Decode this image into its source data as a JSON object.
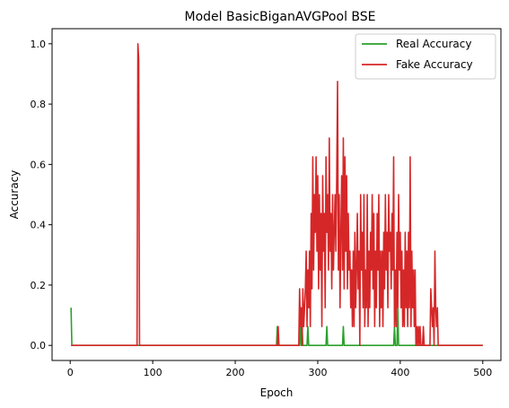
{
  "chart_data": {
    "type": "line",
    "title": "Model BasicBiganAVGPool BSE",
    "xlabel": "Epoch",
    "ylabel": "Accuracy",
    "xlim": [
      -22,
      522
    ],
    "ylim": [
      -0.05,
      1.05
    ],
    "xticks": [
      0,
      100,
      200,
      300,
      400,
      500
    ],
    "yticks": [
      0.0,
      0.2,
      0.4,
      0.6,
      0.8,
      1.0
    ],
    "xtick_labels": [
      "0",
      "100",
      "200",
      "300",
      "400",
      "500"
    ],
    "ytick_labels": [
      "0.0",
      "0.2",
      "0.4",
      "0.6",
      "0.8",
      "1.0"
    ],
    "legend_position": "top-right",
    "grid": false,
    "series": [
      {
        "name": "Real Accuracy",
        "color": "#2ca02c",
        "points": [
          [
            1,
            0.125
          ],
          [
            2,
            0
          ],
          [
            250,
            0
          ],
          [
            251,
            0.0625
          ],
          [
            252,
            0
          ],
          [
            278,
            0
          ],
          [
            279,
            0.125
          ],
          [
            280,
            0
          ],
          [
            281,
            0.0625
          ],
          [
            282,
            0
          ],
          [
            287,
            0
          ],
          [
            288,
            0.0625
          ],
          [
            289,
            0
          ],
          [
            310,
            0
          ],
          [
            311,
            0.0625
          ],
          [
            312,
            0
          ],
          [
            330,
            0
          ],
          [
            331,
            0.0625
          ],
          [
            332,
            0
          ],
          [
            392,
            0
          ],
          [
            393,
            0.0625
          ],
          [
            394,
            0
          ],
          [
            396,
            0
          ],
          [
            397,
            0.125
          ],
          [
            398,
            0
          ],
          [
            500,
            0
          ]
        ]
      },
      {
        "name": "Fake Accuracy",
        "color": "#d62728",
        "points": [
          [
            1,
            0
          ],
          [
            81,
            0
          ],
          [
            82,
            1.0
          ],
          [
            83,
            0.95
          ],
          [
            84,
            0
          ],
          [
            251,
            0
          ],
          [
            252,
            0.0625
          ],
          [
            253,
            0
          ],
          [
            277,
            0
          ],
          [
            278,
            0.1875
          ],
          [
            279,
            0.0625
          ],
          [
            280,
            0.125
          ],
          [
            281,
            0
          ],
          [
            282,
            0.1875
          ],
          [
            283,
            0.0625
          ],
          [
            284,
            0.125
          ],
          [
            285,
            0.1875
          ],
          [
            286,
            0.3125
          ],
          [
            287,
            0.0625
          ],
          [
            288,
            0.25
          ],
          [
            289,
            0.125
          ],
          [
            290,
            0.3125
          ],
          [
            291,
            0.0625
          ],
          [
            292,
            0.4375
          ],
          [
            293,
            0.1875
          ],
          [
            294,
            0.625
          ],
          [
            295,
            0.25
          ],
          [
            296,
            0.5
          ],
          [
            297,
            0.375
          ],
          [
            298,
            0.625
          ],
          [
            299,
            0.3125
          ],
          [
            300,
            0.5625
          ],
          [
            301,
            0.1875
          ],
          [
            302,
            0.5
          ],
          [
            303,
            0.25
          ],
          [
            304,
            0.4375
          ],
          [
            305,
            0.0625
          ],
          [
            306,
            0.5625
          ],
          [
            307,
            0.3125
          ],
          [
            308,
            0.4375
          ],
          [
            309,
            0.125
          ],
          [
            310,
            0.625
          ],
          [
            311,
            0.375
          ],
          [
            312,
            0.5
          ],
          [
            313,
            0.25
          ],
          [
            314,
            0.6875
          ],
          [
            315,
            0.3125
          ],
          [
            316,
            0.4375
          ],
          [
            317,
            0.1875
          ],
          [
            318,
            0.5
          ],
          [
            319,
            0.25
          ],
          [
            320,
            0.375
          ],
          [
            321,
            0.5
          ],
          [
            322,
            0.3125
          ],
          [
            323,
            0.5625
          ],
          [
            324,
            0.875
          ],
          [
            325,
            0.25
          ],
          [
            326,
            0.5
          ],
          [
            327,
            0.125
          ],
          [
            328,
            0.375
          ],
          [
            329,
            0.5625
          ],
          [
            330,
            0.25
          ],
          [
            331,
            0.6875
          ],
          [
            332,
            0.1875
          ],
          [
            333,
            0.625
          ],
          [
            334,
            0.3125
          ],
          [
            335,
            0.5625
          ],
          [
            336,
            0.1875
          ],
          [
            337,
            0.4375
          ],
          [
            338,
            0.25
          ],
          [
            339,
            0.3125
          ],
          [
            340,
            0.125
          ],
          [
            341,
            0.25
          ],
          [
            342,
            0.0625
          ],
          [
            343,
            0.3125
          ],
          [
            344,
            0.0625
          ],
          [
            345,
            0.375
          ],
          [
            346,
            0.125
          ],
          [
            347,
            0.25
          ],
          [
            348,
            0.4375
          ],
          [
            349,
            0.1875
          ],
          [
            350,
            0.3125
          ],
          [
            351,
            0
          ],
          [
            352,
            0.5
          ],
          [
            353,
            0.25
          ],
          [
            354,
            0.375
          ],
          [
            355,
            0.125
          ],
          [
            356,
            0.5
          ],
          [
            357,
            0.0625
          ],
          [
            358,
            0.25
          ],
          [
            359,
            0.125
          ],
          [
            360,
            0.5
          ],
          [
            361,
            0.0625
          ],
          [
            362,
            0.3125
          ],
          [
            363,
            0.125
          ],
          [
            364,
            0.375
          ],
          [
            365,
            0.25
          ],
          [
            366,
            0.5
          ],
          [
            367,
            0.1875
          ],
          [
            368,
            0.4375
          ],
          [
            369,
            0.0625
          ],
          [
            370,
            0.3125
          ],
          [
            371,
            0.125
          ],
          [
            372,
            0.4375
          ],
          [
            373,
            0.25
          ],
          [
            374,
            0.5
          ],
          [
            375,
            0.0625
          ],
          [
            376,
            0.3125
          ],
          [
            377,
            0.125
          ],
          [
            378,
            0.3125
          ],
          [
            379,
            0.0625
          ],
          [
            380,
            0.375
          ],
          [
            381,
            0.1875
          ],
          [
            382,
            0.5
          ],
          [
            383,
            0.25
          ],
          [
            384,
            0.375
          ],
          [
            385,
            0.125
          ],
          [
            386,
            0.5
          ],
          [
            387,
            0.3125
          ],
          [
            388,
            0.375
          ],
          [
            389,
            0.1875
          ],
          [
            390,
            0.4375
          ],
          [
            391,
            0.25
          ],
          [
            392,
            0.625
          ],
          [
            393,
            0.0625
          ],
          [
            394,
            0.25
          ],
          [
            395,
            0.0625
          ],
          [
            396,
            0.375
          ],
          [
            397,
            0.125
          ],
          [
            398,
            0.5
          ],
          [
            399,
            0.25
          ],
          [
            400,
            0.375
          ],
          [
            401,
            0.125
          ],
          [
            402,
            0.3125
          ],
          [
            403,
            0.0625
          ],
          [
            404,
            0.25
          ],
          [
            405,
            0.0625
          ],
          [
            406,
            0.375
          ],
          [
            407,
            0.125
          ],
          [
            408,
            0.3125
          ],
          [
            409,
            0.0625
          ],
          [
            410,
            0.375
          ],
          [
            411,
            0.125
          ],
          [
            412,
            0.625
          ],
          [
            413,
            0.0625
          ],
          [
            414,
            0.3125
          ],
          [
            415,
            0.125
          ],
          [
            416,
            0.25
          ],
          [
            417,
            0.0625
          ],
          [
            418,
            0.25
          ],
          [
            419,
            0
          ],
          [
            420,
            0.0625
          ],
          [
            421,
            0
          ],
          [
            422,
            0.0625
          ],
          [
            423,
            0
          ],
          [
            424,
            0.0625
          ],
          [
            425,
            0
          ],
          [
            427,
            0
          ],
          [
            428,
            0.0625
          ],
          [
            429,
            0
          ],
          [
            436,
            0
          ],
          [
            437,
            0.1875
          ],
          [
            438,
            0.125
          ],
          [
            439,
            0.0625
          ],
          [
            440,
            0.125
          ],
          [
            441,
            0
          ],
          [
            442,
            0.3125
          ],
          [
            443,
            0.125
          ],
          [
            444,
            0.0625
          ],
          [
            445,
            0.125
          ],
          [
            446,
            0
          ],
          [
            500,
            0
          ]
        ]
      }
    ]
  }
}
